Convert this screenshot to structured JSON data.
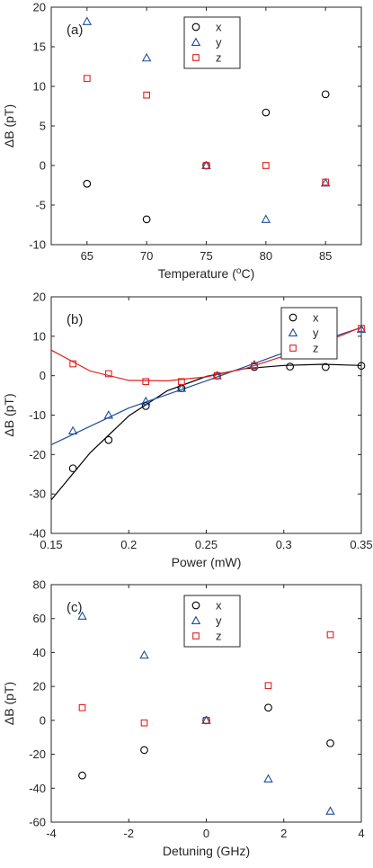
{
  "colors": {
    "x": "#000000",
    "y": "#1f4e9c",
    "z": "#e3201c",
    "axis": "#262626"
  },
  "chart_data": [
    {
      "type": "scatter",
      "panel_label": "(a)",
      "xlabel": "Temperature (",
      "xlabel_sup": "o",
      "xlabel_tail": "C)",
      "ylabel": "ΔB (pT)",
      "xlim": [
        62,
        88
      ],
      "ylim": [
        -10,
        20
      ],
      "xticks": [
        65,
        70,
        75,
        80,
        85
      ],
      "yticks": [
        -10,
        -5,
        0,
        5,
        10,
        15,
        20
      ],
      "legend_position": "top-center",
      "series": [
        {
          "name": "x",
          "marker": "circle",
          "x": [
            65,
            70,
            75,
            80,
            85
          ],
          "y": [
            -2.3,
            -6.8,
            0,
            6.7,
            9.0
          ]
        },
        {
          "name": "y",
          "marker": "triangle",
          "x": [
            65,
            70,
            75,
            80,
            85
          ],
          "y": [
            18.2,
            13.6,
            0,
            -6.8,
            -2.2
          ]
        },
        {
          "name": "z",
          "marker": "square",
          "x": [
            65,
            70,
            75,
            80,
            85
          ],
          "y": [
            11.0,
            8.9,
            0,
            0,
            -2.1
          ]
        }
      ]
    },
    {
      "type": "scatter",
      "panel_label": "(b)",
      "xlabel": "Power (mW)",
      "ylabel": "ΔB (pT)",
      "xlim": [
        0.15,
        0.35
      ],
      "ylim": [
        -40,
        20
      ],
      "xticks": [
        0.15,
        0.2,
        0.25,
        0.3,
        0.35
      ],
      "yticks": [
        -40,
        -30,
        -20,
        -10,
        0,
        10,
        20
      ],
      "legend_position": "top-right",
      "series": [
        {
          "name": "x",
          "marker": "circle",
          "x": [
            0.164,
            0.187,
            0.211,
            0.234,
            0.257,
            0.281,
            0.304,
            0.327,
            0.35
          ],
          "y": [
            -23.5,
            -16.3,
            -7.7,
            -3.2,
            0,
            2.2,
            2.3,
            2.2,
            2.5
          ]
        },
        {
          "name": "y",
          "marker": "triangle",
          "x": [
            0.164,
            0.187,
            0.211,
            0.234,
            0.257,
            0.281,
            0.304,
            0.327,
            0.35
          ],
          "y": [
            -14.0,
            -10.0,
            -6.5,
            -3.2,
            0,
            2.8,
            6.0,
            8.3,
            11.8
          ]
        },
        {
          "name": "z",
          "marker": "square",
          "x": [
            0.164,
            0.187,
            0.211,
            0.234,
            0.257,
            0.281,
            0.304,
            0.327,
            0.35
          ],
          "y": [
            3.0,
            0.5,
            -1.5,
            -1.5,
            0,
            2.5,
            6.0,
            8.8,
            12.0
          ]
        }
      ],
      "fits": [
        {
          "series": "x",
          "x": [
            0.15,
            0.175,
            0.2,
            0.225,
            0.25,
            0.275,
            0.3,
            0.325,
            0.35
          ],
          "y": [
            -31.5,
            -19.6,
            -10.2,
            -3.8,
            -0.2,
            1.8,
            2.6,
            2.9,
            2.6
          ]
        },
        {
          "series": "y",
          "x": [
            0.15,
            0.2,
            0.25,
            0.3,
            0.35
          ],
          "y": [
            -17.5,
            -8.2,
            -1.3,
            5.8,
            12.2
          ]
        },
        {
          "series": "z",
          "x": [
            0.15,
            0.175,
            0.2,
            0.225,
            0.25,
            0.275,
            0.3,
            0.325,
            0.35
          ],
          "y": [
            6.5,
            1.2,
            -1.2,
            -1.3,
            -0.3,
            1.8,
            5.0,
            8.3,
            12.3
          ]
        }
      ]
    },
    {
      "type": "scatter",
      "panel_label": "(c)",
      "xlabel": "Detuning (GHz)",
      "ylabel": "ΔB (pT)",
      "xlim": [
        -4,
        4
      ],
      "ylim": [
        -60,
        80
      ],
      "xticks": [
        -4,
        -2,
        0,
        2,
        4
      ],
      "yticks": [
        -60,
        -40,
        -20,
        0,
        20,
        40,
        60,
        80
      ],
      "legend_position": "top-center",
      "series": [
        {
          "name": "x",
          "marker": "circle",
          "x": [
            -3.2,
            -1.6,
            0,
            1.6,
            3.2
          ],
          "y": [
            -32.5,
            -17.5,
            0,
            7.5,
            -13.5
          ]
        },
        {
          "name": "y",
          "marker": "triangle",
          "x": [
            -3.2,
            -1.6,
            0,
            1.6,
            3.2
          ],
          "y": [
            61.5,
            38.5,
            0,
            -34.5,
            -53.5
          ]
        },
        {
          "name": "z",
          "marker": "square",
          "x": [
            -3.2,
            -1.6,
            0,
            1.6,
            3.2
          ],
          "y": [
            7.5,
            -1.5,
            0,
            20.5,
            50.5
          ]
        }
      ]
    }
  ]
}
